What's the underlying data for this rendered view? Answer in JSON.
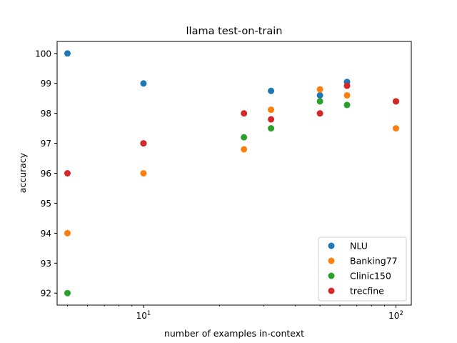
{
  "chart_data": {
    "type": "scatter",
    "title": "llama test-on-train",
    "xlabel": "number of examples in-context",
    "ylabel": "accuracy",
    "xscale": "log",
    "xlim": [
      4.55,
      115
    ],
    "ylim": [
      91.6,
      100.4
    ],
    "x_ticks": [
      {
        "value": 10,
        "base": "10",
        "exp": "1"
      },
      {
        "value": 100,
        "base": "10",
        "exp": "2"
      }
    ],
    "y_ticks": [
      92,
      93,
      94,
      95,
      96,
      97,
      98,
      99,
      100
    ],
    "legend_position": "lower right",
    "grid": false,
    "series": [
      {
        "name": "NLU",
        "color": "#1f77b4",
        "points": [
          [
            5,
            100.0
          ],
          [
            10,
            99.0
          ],
          [
            32,
            98.75
          ],
          [
            50,
            98.6
          ],
          [
            64,
            99.05
          ],
          [
            100,
            98.4
          ]
        ]
      },
      {
        "name": "Banking77",
        "color": "#ff7f0e",
        "points": [
          [
            5,
            94.0
          ],
          [
            10,
            96.0
          ],
          [
            25,
            96.8
          ],
          [
            32,
            98.12
          ],
          [
            50,
            98.8
          ],
          [
            64,
            98.6
          ],
          [
            100,
            97.5
          ]
        ]
      },
      {
        "name": "Clinic150",
        "color": "#2ca02c",
        "points": [
          [
            5,
            92.0
          ],
          [
            10,
            97.0
          ],
          [
            25,
            97.2
          ],
          [
            32,
            97.5
          ],
          [
            50,
            98.4
          ],
          [
            64,
            98.28
          ],
          [
            100,
            98.4
          ]
        ]
      },
      {
        "name": "trecfine",
        "color": "#d62728",
        "points": [
          [
            5,
            96.0
          ],
          [
            10,
            97.0
          ],
          [
            25,
            98.0
          ],
          [
            32,
            97.8
          ],
          [
            50,
            98.0
          ],
          [
            64,
            98.92
          ],
          [
            100,
            98.4
          ]
        ]
      }
    ]
  }
}
